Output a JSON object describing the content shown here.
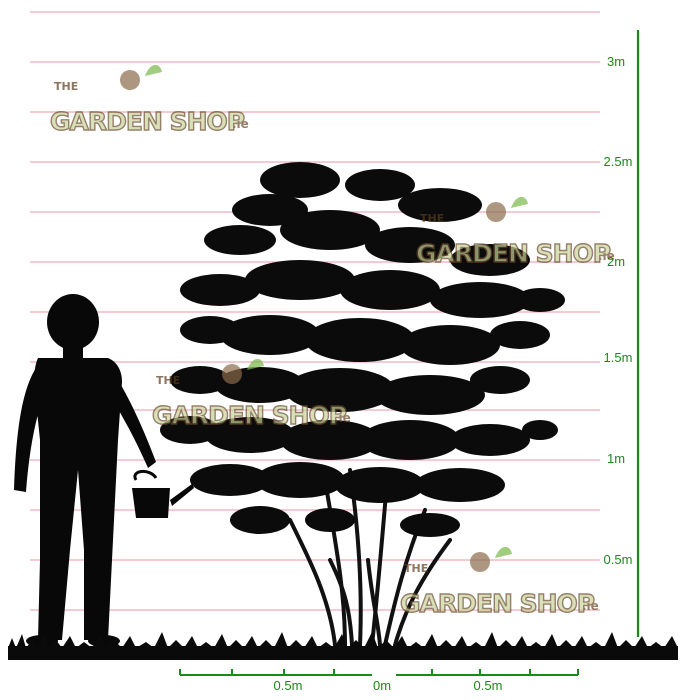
{
  "height_scale": {
    "labels": [
      "0.5m",
      "1m",
      "1.5m",
      "2m",
      "2.5m",
      "3m"
    ],
    "color": "#1a8a1a"
  },
  "width_scale": {
    "left_label": "0.5m",
    "center_label": "0m",
    "right_label": "0.5m",
    "color": "#1a8a1a"
  },
  "guide_lines": {
    "color": "#f2b8c4"
  },
  "watermark": {
    "prefix": "THE",
    "brand": "GARDEN SHOP",
    "suffix": ".ie"
  },
  "silhouettes": {
    "person": "person-with-watering-can",
    "plant": "multi-stem-shrub",
    "ground": "grass"
  }
}
